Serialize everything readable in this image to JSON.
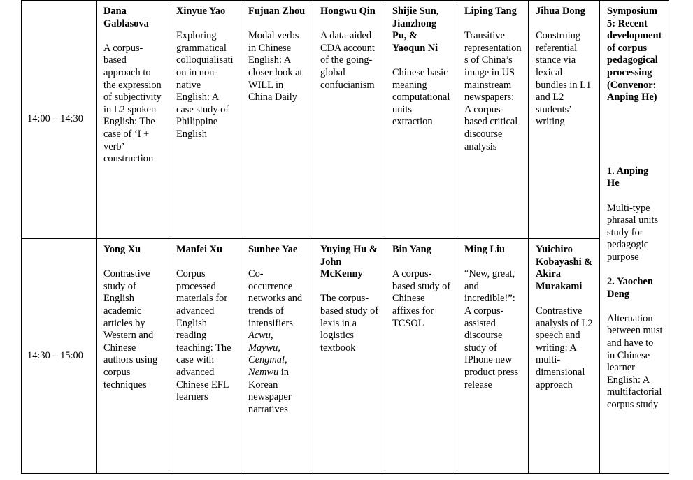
{
  "rows": [
    {
      "time": "14:00 – 14:30",
      "cells": [
        {
          "name": "Dana Gablasova",
          "title": "A corpus-based approach to the expression of subjectivity in L2 spoken English: The case of ‘I + verb’ construction"
        },
        {
          "name": "Xinyue Yao",
          "title": "Exploring grammatical colloquialisation in non-native English: A case study of Philippine English"
        },
        {
          "name": "Fujuan Zhou",
          "title": "Modal verbs in Chinese English: A closer look at WILL in China Daily"
        },
        {
          "name": "Hongwu Qin",
          "title": "A data-aided CDA account of the going-global confucianism"
        },
        {
          "name": "Shijie Sun, Jianzhong Pu, & Yaoqun Ni",
          "title": "Chinese basic meaning computational units extraction"
        },
        {
          "name": "Liping Tang",
          "title": "Transitive representations of China’s image in US mainstream newspapers: A corpus-based critical discourse analysis"
        },
        {
          "name": "Jihua Dong",
          "title": "Construing referential stance via lexical bundles in L1 and L2 students’ writing"
        }
      ]
    },
    {
      "time": "14:30 – 15:00",
      "cells": [
        {
          "name": "Yong Xu",
          "title": "Contrastive study of English academic articles by Western and Chinese authors using corpus techniques"
        },
        {
          "name": "Manfei Xu",
          "title": "Corpus processed materials for advanced English reading teaching: The case with advanced Chinese EFL learners"
        },
        {
          "name": "Sunhee Yae",
          "title_pre": "Co-occurrence networks and trends of intensifiers ",
          "title_italic": "Acwu, Maywu, Cengmal, Nemwu",
          "title_post": " in Korean newspaper narratives"
        },
        {
          "name": "Yuying Hu & John McKenny",
          "title": "The corpus-based study of lexis in a logistics textbook"
        },
        {
          "name": "Bin Yang",
          "title": "A corpus-based study of Chinese affixes for TCSOL"
        },
        {
          "name": "Ming Liu",
          "title": "“New, great, and incredible!”: A corpus-assisted discourse study of IPhone new product press release"
        },
        {
          "name": "Yuichiro Kobayashi & Akira Murakami",
          "title": "Contrastive analysis of L2 speech and writing: A multi-dimensional approach"
        }
      ]
    }
  ],
  "symposium": {
    "title": "Symposium 5: Recent development of corpus pedagogical processing (Convenor: Anping He)",
    "talks": [
      {
        "speaker": "1. Anping He",
        "title": "Multi-type phrasal units study for pedagogic purpose"
      },
      {
        "speaker": "2. Yaochen Deng",
        "title": "Alternation between must and have to in Chinese learner English: A multifactorial corpus study"
      }
    ]
  }
}
